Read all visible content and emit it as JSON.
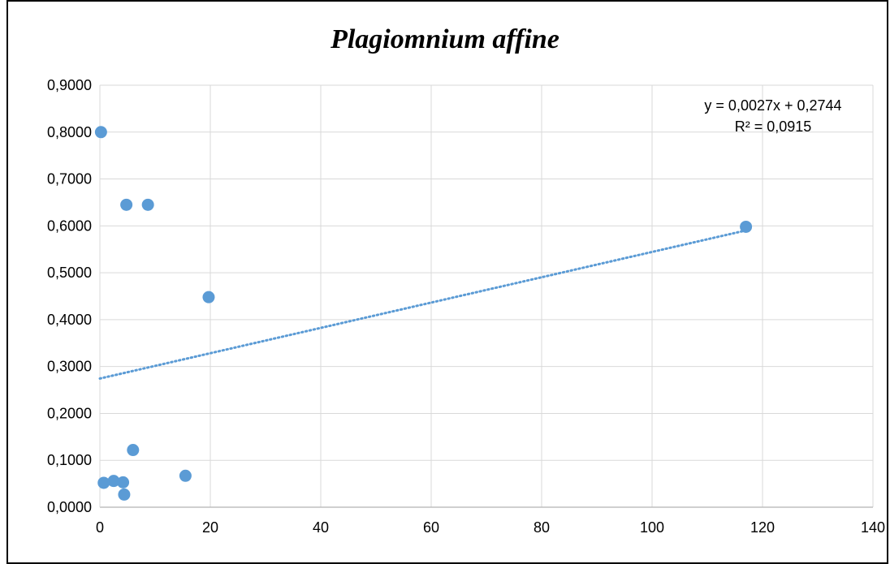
{
  "chart_data": {
    "type": "scatter",
    "title": "Plagiomnium affine",
    "xlabel": "",
    "ylabel": "",
    "xlim": [
      0,
      140
    ],
    "ylim": [
      0,
      0.9
    ],
    "x_ticks": [
      "0",
      "20",
      "40",
      "60",
      "80",
      "100",
      "120",
      "140"
    ],
    "y_ticks": [
      "0,0000",
      "0,1000",
      "0,2000",
      "0,3000",
      "0,4000",
      "0,5000",
      "0,6000",
      "0,7000",
      "0,8000",
      "0,9000"
    ],
    "grid": true,
    "legend": "none",
    "series": [
      {
        "color": "#5b9bd5",
        "points": [
          {
            "x": 0.2,
            "y": 0.8
          },
          {
            "x": 4.8,
            "y": 0.645
          },
          {
            "x": 8.7,
            "y": 0.645
          },
          {
            "x": 19.7,
            "y": 0.448
          },
          {
            "x": 117,
            "y": 0.598
          },
          {
            "x": 6.0,
            "y": 0.122
          },
          {
            "x": 15.5,
            "y": 0.067
          },
          {
            "x": 0.7,
            "y": 0.052
          },
          {
            "x": 2.5,
            "y": 0.056
          },
          {
            "x": 4.2,
            "y": 0.053
          },
          {
            "x": 4.4,
            "y": 0.027
          }
        ]
      }
    ],
    "trendline": {
      "type": "linear",
      "slope": 0.0027,
      "intercept": 0.2744,
      "x_range": [
        0,
        117
      ],
      "color": "#5b9bd5",
      "style": "dotted",
      "equation": "y = 0,0027x + 0,2744",
      "r_squared": "R² = 0,0915"
    }
  }
}
